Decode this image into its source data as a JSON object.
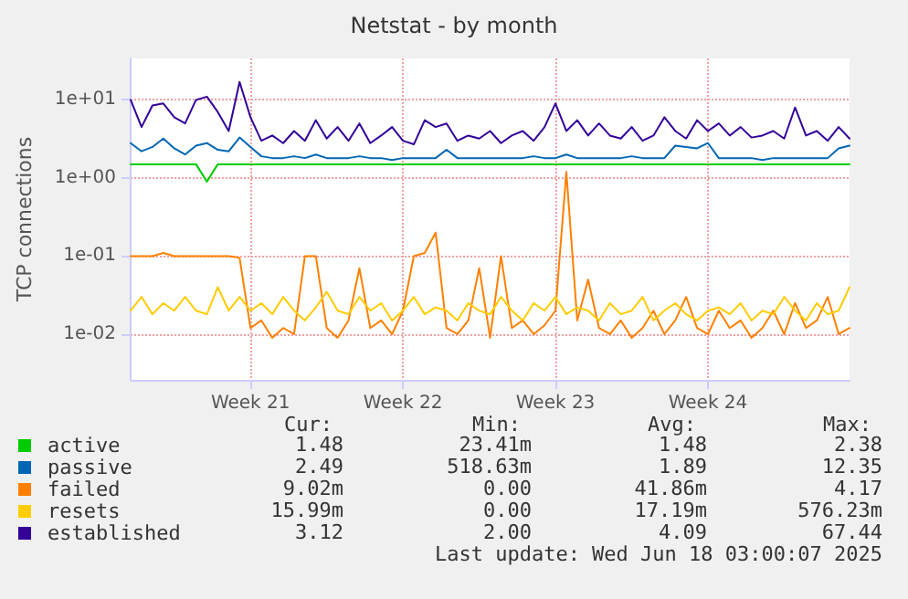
{
  "chart_data": {
    "type": "line",
    "title": "Netstat - by month",
    "ylabel": "TCP connections",
    "categories": [
      null,
      null,
      null,
      null,
      null,
      null,
      null,
      null,
      null,
      null,
      null,
      "Week 21",
      null,
      null,
      null,
      null,
      null,
      null,
      null,
      null,
      null,
      null,
      null,
      null,
      null,
      "Week 22",
      null,
      null,
      null,
      null,
      null,
      null,
      null,
      null,
      null,
      null,
      null,
      null,
      null,
      "Week 23",
      null,
      null,
      null,
      null,
      null,
      null,
      null,
      null,
      null,
      null,
      null,
      null,
      null,
      "Week 24",
      null,
      null,
      null,
      null,
      null,
      null,
      null,
      null,
      null,
      null,
      null,
      null,
      null
    ],
    "series": [
      {
        "name": "active",
        "color": "#00cc00",
        "values": [
          1.5,
          1.5,
          1.5,
          1.5,
          1.5,
          1.5,
          1.5,
          0.9,
          1.5,
          1.5,
          1.5,
          1.5,
          1.5,
          1.5,
          1.5,
          1.5,
          1.5,
          1.5,
          1.5,
          1.5,
          1.5,
          1.5,
          1.5,
          1.5,
          1.5,
          1.5,
          1.5,
          1.5,
          1.5,
          1.5,
          1.5,
          1.5,
          1.5,
          1.5,
          1.5,
          1.5,
          1.5,
          1.5,
          1.5,
          1.5,
          1.5,
          1.5,
          1.5,
          1.5,
          1.5,
          1.5,
          1.5,
          1.5,
          1.5,
          1.5,
          1.5,
          1.5,
          1.5,
          1.5,
          1.5,
          1.5,
          1.5,
          1.5,
          1.5,
          1.5,
          1.5,
          1.5,
          1.5,
          1.5,
          1.5,
          1.5,
          1.5
        ]
      },
      {
        "name": "passive",
        "color": "#0066b3",
        "values": [
          2.8,
          2.2,
          2.5,
          3.2,
          2.4,
          2.0,
          2.6,
          2.8,
          2.3,
          2.2,
          3.3,
          2.5,
          1.9,
          1.8,
          1.8,
          1.9,
          1.8,
          2.0,
          1.8,
          1.8,
          1.8,
          1.9,
          1.8,
          1.8,
          1.7,
          1.8,
          1.8,
          1.8,
          1.8,
          2.3,
          1.8,
          1.8,
          1.8,
          1.8,
          1.8,
          1.8,
          1.8,
          1.9,
          1.8,
          1.8,
          2.0,
          1.8,
          1.8,
          1.8,
          1.8,
          1.8,
          1.9,
          1.8,
          1.8,
          1.8,
          2.6,
          2.5,
          2.4,
          2.8,
          1.8,
          1.8,
          1.8,
          1.8,
          1.7,
          1.8,
          1.8,
          1.8,
          1.8,
          1.8,
          1.8,
          2.4,
          2.6
        ]
      },
      {
        "name": "failed",
        "color": "#ff8000",
        "values": [
          0.1,
          0.1,
          0.1,
          0.11,
          0.1,
          0.1,
          0.1,
          0.1,
          0.1,
          0.1,
          0.095,
          0.012,
          0.015,
          0.009,
          0.012,
          0.01,
          0.1,
          0.1,
          0.012,
          0.009,
          0.015,
          0.07,
          0.012,
          0.015,
          0.01,
          0.02,
          0.1,
          0.11,
          0.2,
          0.012,
          0.01,
          0.015,
          0.07,
          0.009,
          0.1,
          0.012,
          0.015,
          0.01,
          0.013,
          0.02,
          1.2,
          0.015,
          0.05,
          0.012,
          0.01,
          0.015,
          0.009,
          0.012,
          0.02,
          0.01,
          0.015,
          0.03,
          0.012,
          0.01,
          0.02,
          0.012,
          0.015,
          0.009,
          0.012,
          0.02,
          0.01,
          0.025,
          0.012,
          0.015,
          0.03,
          0.01,
          0.012
        ]
      },
      {
        "name": "resets",
        "color": "#ffcc00",
        "values": [
          0.02,
          0.03,
          0.018,
          0.025,
          0.02,
          0.03,
          0.02,
          0.018,
          0.04,
          0.02,
          0.03,
          0.02,
          0.025,
          0.018,
          0.03,
          0.02,
          0.015,
          0.022,
          0.035,
          0.02,
          0.018,
          0.03,
          0.02,
          0.025,
          0.015,
          0.02,
          0.03,
          0.018,
          0.022,
          0.02,
          0.015,
          0.025,
          0.02,
          0.018,
          0.03,
          0.02,
          0.015,
          0.025,
          0.02,
          0.03,
          0.018,
          0.022,
          0.02,
          0.015,
          0.025,
          0.018,
          0.02,
          0.03,
          0.015,
          0.02,
          0.025,
          0.018,
          0.015,
          0.02,
          0.022,
          0.018,
          0.025,
          0.015,
          0.02,
          0.018,
          0.03,
          0.02,
          0.015,
          0.025,
          0.018,
          0.02,
          0.04
        ]
      },
      {
        "name": "established",
        "color": "#330099",
        "values": [
          10,
          4.5,
          8.5,
          9,
          6,
          5,
          10,
          11,
          7,
          4,
          17,
          6,
          3,
          3.5,
          2.8,
          4,
          3,
          5.5,
          3.2,
          4.5,
          3,
          5,
          2.8,
          3.5,
          4.5,
          3,
          2.7,
          5.5,
          4.5,
          5,
          3,
          3.5,
          3.2,
          4,
          2.8,
          3.5,
          4,
          3,
          4.5,
          9,
          4,
          5.5,
          3.5,
          5,
          3.5,
          3.2,
          4.5,
          3,
          3.5,
          6,
          4,
          3.2,
          5.5,
          4,
          5,
          3.5,
          4.5,
          3.3,
          3.5,
          4,
          3.2,
          8,
          3.5,
          4,
          3,
          4.5,
          3.2
        ]
      }
    ],
    "log": "y",
    "ylim": [
      0.0026,
      34
    ],
    "yticks": [
      {
        "value": 0.01,
        "label": "1e-02"
      },
      {
        "value": 0.1,
        "label": "1e-01"
      },
      {
        "value": 1,
        "label": "1e+00"
      },
      {
        "value": 10,
        "label": "1e+01"
      }
    ],
    "grid": true,
    "legend": "bottom left",
    "marker": "none",
    "line_style": "solid",
    "annotations": [
      "Cur:",
      "Min:",
      "Avg:",
      "Max:",
      "1.48",
      "23.41m",
      "1.48",
      "2.38",
      "2.49",
      "518.63m",
      "1.89",
      "12.35",
      "9.02m",
      "0.00",
      "41.86m",
      "4.17",
      "15.99m",
      "0.00",
      "17.19m",
      "576.23m",
      "3.12",
      "2.00",
      "4.09",
      "67.44",
      "Last update: Wed Jun 18 03:00:07 2025"
    ]
  }
}
